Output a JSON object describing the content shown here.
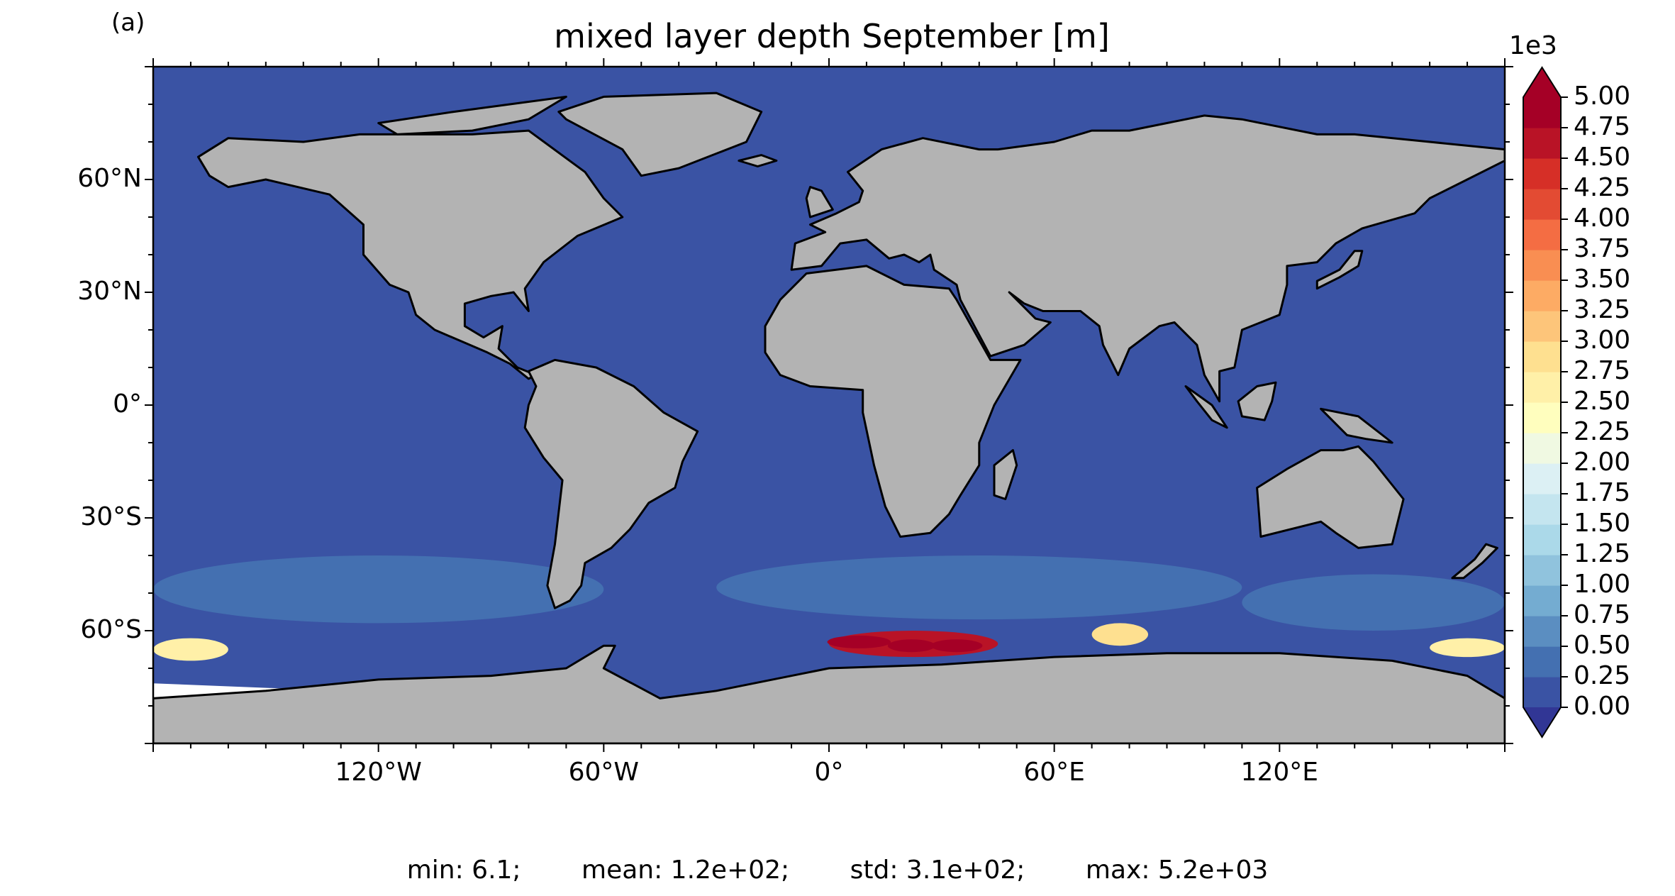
{
  "panel_label": "(a)",
  "title": "mixed layer depth September [m]",
  "map": {
    "projection": "PlateCarree",
    "lon_range": [
      -180,
      180
    ],
    "lat_range": [
      -90,
      90
    ],
    "lat_ticks": [
      {
        "value": 60,
        "label": "60°N"
      },
      {
        "value": 30,
        "label": "30°N"
      },
      {
        "value": 0,
        "label": "0°"
      },
      {
        "value": -30,
        "label": "30°S"
      },
      {
        "value": -60,
        "label": "60°S"
      }
    ],
    "lon_ticks": [
      {
        "value": -120,
        "label": "120°W"
      },
      {
        "value": -60,
        "label": "60°W"
      },
      {
        "value": 0,
        "label": "0°"
      },
      {
        "value": 60,
        "label": "60°E"
      },
      {
        "value": 120,
        "label": "120°E"
      }
    ],
    "colors": {
      "ocean_shallow": "#3a53a4",
      "land": "#b3b3b3",
      "coast": "#000000",
      "no_data": "#ffffff"
    }
  },
  "colorbar": {
    "exponent_label": "1e3",
    "extend": "both",
    "ticks": [
      "5.00",
      "4.75",
      "4.50",
      "4.25",
      "4.00",
      "3.75",
      "3.50",
      "3.25",
      "3.00",
      "2.75",
      "2.50",
      "2.25",
      "2.00",
      "1.75",
      "1.50",
      "1.25",
      "1.00",
      "0.75",
      "0.50",
      "0.25",
      "0.00"
    ],
    "colors": [
      "#313695",
      "#3a53a4",
      "#4470b1",
      "#5b8ec1",
      "#74acd1",
      "#90c3dd",
      "#abd9e9",
      "#c4e5ef",
      "#dcf0f4",
      "#f0f9e2",
      "#fffebe",
      "#fff0a8",
      "#fee090",
      "#fdc57a",
      "#fdab64",
      "#f98e52",
      "#f46d43",
      "#e34b33",
      "#d62f27",
      "#b91326",
      "#a50026"
    ],
    "under_color": "#313695",
    "over_color": "#a50026"
  },
  "chart_data": {
    "type": "heatmap",
    "variable": "mixed layer depth",
    "month": "September",
    "units": "m",
    "scale_factor": 1000,
    "vmin": 0.0,
    "vmax": 5.0,
    "level_step": 0.25,
    "statistics": [
      {
        "name": "min",
        "value": "6.1"
      },
      {
        "name": "mean",
        "value": "1.2e+02"
      },
      {
        "name": "std",
        "value": "3.1e+02"
      },
      {
        "name": "max",
        "value": "5.2e+03"
      }
    ],
    "regions": [
      {
        "lon": [
          -180,
          180
        ],
        "lat": [
          -90,
          90
        ],
        "value": 0.1
      },
      {
        "lon": [
          -180,
          -60
        ],
        "lat": [
          -58,
          -40
        ],
        "value": 0.4
      },
      {
        "lon": [
          -30,
          110
        ],
        "lat": [
          -57,
          -40
        ],
        "value": 0.35
      },
      {
        "lon": [
          110,
          180
        ],
        "lat": [
          -60,
          -45
        ],
        "value": 0.4
      },
      {
        "lon": [
          -180,
          -160
        ],
        "lat": [
          -68,
          -62
        ],
        "value": 2.5
      },
      {
        "lon": [
          0,
          45
        ],
        "lat": [
          -67,
          -60
        ],
        "value": 4.5
      },
      {
        "lon": [
          70,
          85
        ],
        "lat": [
          -64,
          -58
        ],
        "value": 2.8
      },
      {
        "lon": [
          160,
          180
        ],
        "lat": [
          -67,
          -62
        ],
        "value": 2.5
      }
    ]
  },
  "stats_line": [
    "min: 6.1;",
    "mean: 1.2e+02;",
    "std: 3.1e+02;",
    "max: 5.2e+03"
  ]
}
